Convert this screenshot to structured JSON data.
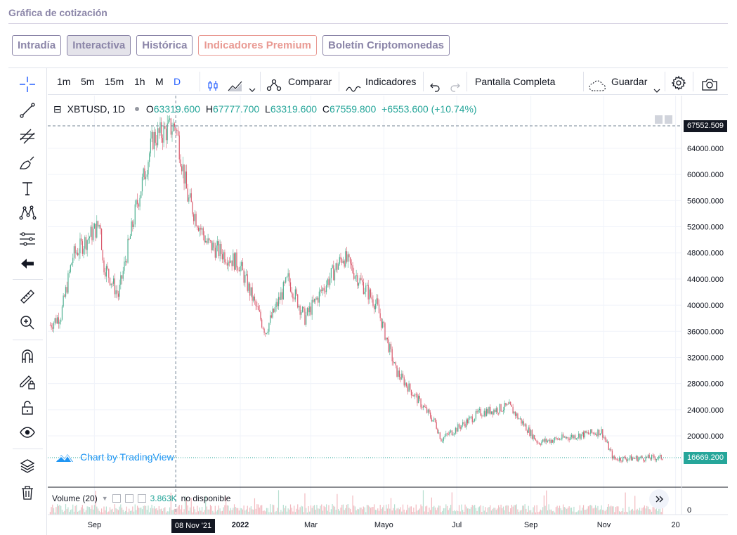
{
  "page": {
    "title": "Gráfica de cotización"
  },
  "tabs": [
    {
      "label": "Intradía",
      "active": false
    },
    {
      "label": "Interactiva",
      "active": true
    },
    {
      "label": "Histórica",
      "active": false
    },
    {
      "label": "Indicadores Premium",
      "active": false
    },
    {
      "label": "Boletín Criptomonedas",
      "active": false
    }
  ],
  "toolbar": {
    "intervals": [
      "1m",
      "5m",
      "15m",
      "1h",
      "M",
      "D"
    ],
    "active_interval": "D",
    "compare_label": "Comparar",
    "indicators_label": "Indicadores",
    "fullscreen_label": "Pantalla Completa",
    "save_label": "Guardar"
  },
  "left_tools": [
    "crosshair-icon",
    "trendline-icon",
    "fib-icon",
    "brush-icon",
    "text-icon",
    "pattern-icon",
    "prediction-icon",
    "back-arrow-icon",
    "ruler-icon",
    "zoom-icon",
    "magnet-icon",
    "lock-draw-icon",
    "lock-icon",
    "eye-icon",
    "layers-icon",
    "trash-icon"
  ],
  "legend": {
    "symbol": "XBTUSD, 1D",
    "o_label": "O",
    "o": "63319.600",
    "h_label": "H",
    "h": "67777.700",
    "l_label": "L",
    "l": "63319.600",
    "c_label": "C",
    "c": "67559.800",
    "change": "+6553.600 (+10.74%)"
  },
  "attribution": "Chart by TradingView",
  "volume": {
    "label": "Volume (20)",
    "value": "3.863K",
    "status": "no disponible",
    "axis_zero": "0"
  },
  "price_axis": {
    "ticks": [
      "64000.000",
      "60000.000",
      "56000.000",
      "52000.000",
      "48000.000",
      "44000.000",
      "40000.000",
      "36000.000",
      "32000.000",
      "28000.000",
      "24000.000",
      "20000.000"
    ],
    "crosshair_price": "67552.509",
    "last_price": "16669.200"
  },
  "time_axis": {
    "ticks": [
      "Sep",
      "2022",
      "Mar",
      "Mayo",
      "Jul",
      "Sep",
      "Nov",
      "20"
    ],
    "crosshair_date": "08 Nov '21"
  },
  "colors": {
    "up": "#4caf8f",
    "down": "#d9586b",
    "accent": "#2962ff",
    "tab": "#8b85a8",
    "premium": "#e99a93"
  },
  "chart_data": {
    "type": "candlestick",
    "symbol": "XBTUSD",
    "interval": "1D",
    "ylim": [
      16000,
      68000
    ],
    "y_ticks": [
      20000,
      24000,
      28000,
      32000,
      36000,
      40000,
      44000,
      48000,
      52000,
      56000,
      60000,
      64000
    ],
    "x_ticks": [
      "Sep",
      "2022",
      "Mar",
      "Mayo",
      "Jul",
      "Sep",
      "Nov",
      "20"
    ],
    "close_path": [
      {
        "date": "2021-07-26",
        "close": 37000
      },
      {
        "date": "2021-08-04",
        "close": 38500
      },
      {
        "date": "2021-08-14",
        "close": 47500
      },
      {
        "date": "2021-08-23",
        "close": 49500
      },
      {
        "date": "2021-09-06",
        "close": 52500
      },
      {
        "date": "2021-09-08",
        "close": 46500
      },
      {
        "date": "2021-09-21",
        "close": 41500
      },
      {
        "date": "2021-10-06",
        "close": 55000
      },
      {
        "date": "2021-10-20",
        "close": 65500
      },
      {
        "date": "2021-11-08",
        "close": 67559.8
      },
      {
        "date": "2021-11-18",
        "close": 56500
      },
      {
        "date": "2021-12-04",
        "close": 49500
      },
      {
        "date": "2021-12-31",
        "close": 46300
      },
      {
        "date": "2022-01-22",
        "close": 36000
      },
      {
        "date": "2022-02-10",
        "close": 44000
      },
      {
        "date": "2022-02-24",
        "close": 38000
      },
      {
        "date": "2022-03-28",
        "close": 47500
      },
      {
        "date": "2022-04-25",
        "close": 40000
      },
      {
        "date": "2022-05-11",
        "close": 30000
      },
      {
        "date": "2022-06-13",
        "close": 22000
      },
      {
        "date": "2022-06-18",
        "close": 19500
      },
      {
        "date": "2022-07-20",
        "close": 23500
      },
      {
        "date": "2022-08-14",
        "close": 24500
      },
      {
        "date": "2022-09-07",
        "close": 19000
      },
      {
        "date": "2022-10-30",
        "close": 20700
      },
      {
        "date": "2022-11-09",
        "close": 16500
      },
      {
        "date": "2022-12-20",
        "close": 16669.2
      }
    ]
  }
}
